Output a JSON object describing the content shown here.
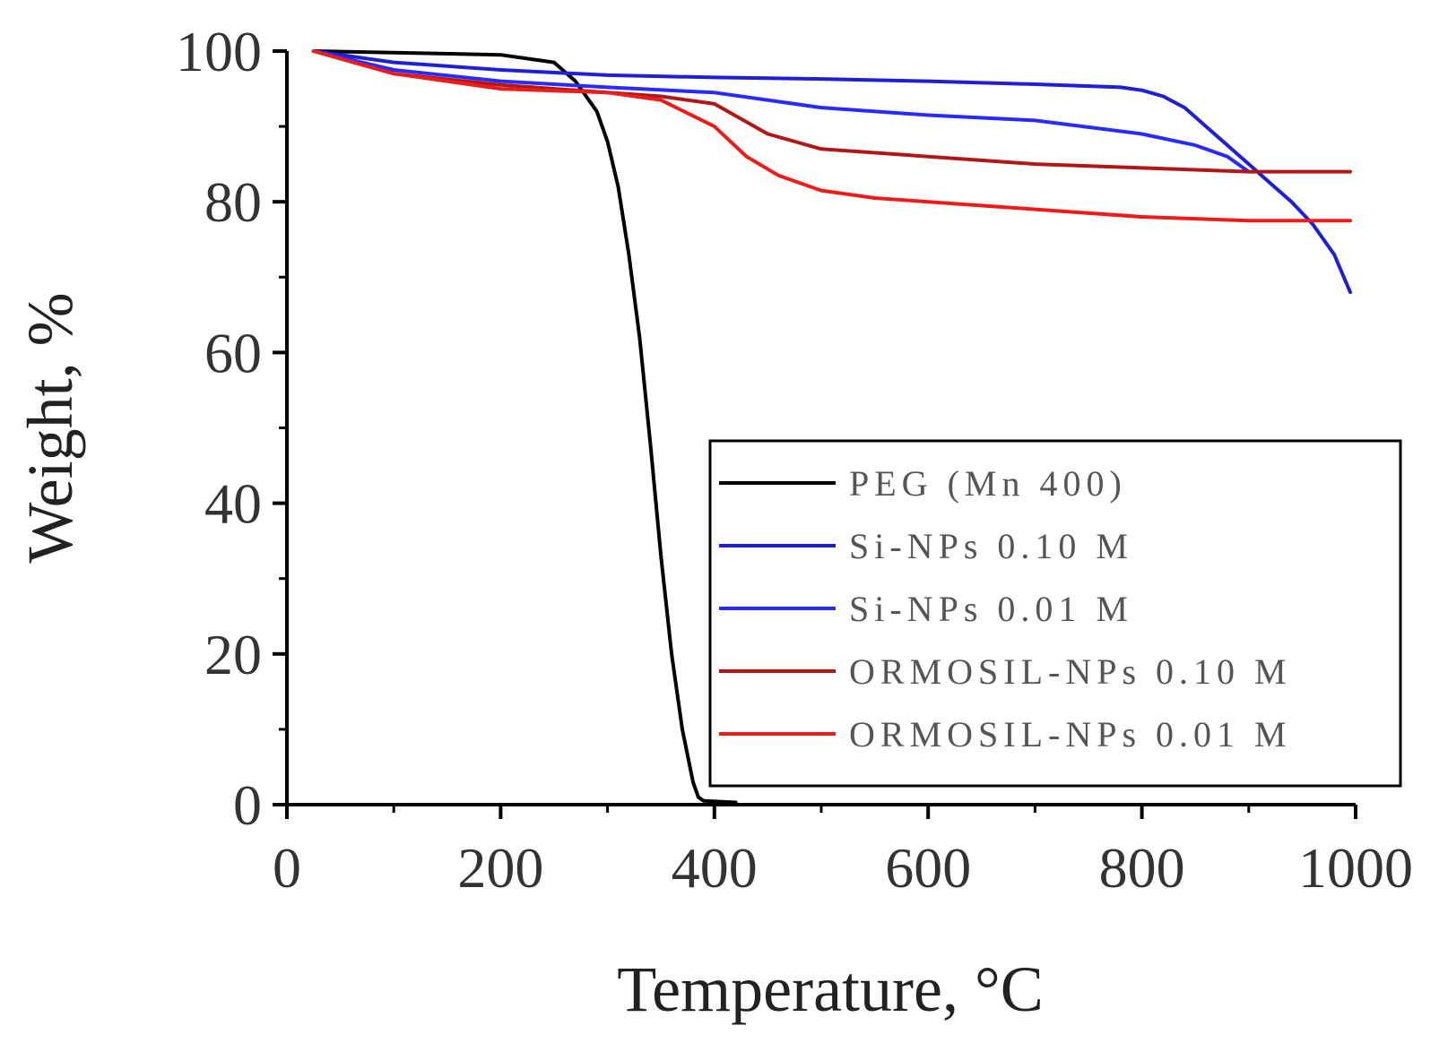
{
  "chart_data": {
    "type": "line",
    "xlabel": "Temperature, °C",
    "ylabel": "Weight, %",
    "xlim": [
      0,
      1000
    ],
    "ylim": [
      0,
      100
    ],
    "xticks": [
      0,
      200,
      400,
      600,
      800,
      1000
    ],
    "yticks": [
      0,
      20,
      40,
      60,
      80,
      100
    ],
    "grid": false,
    "legend_position": "bottom-right",
    "series": [
      {
        "name": "PEG (Mn 400)",
        "color": "#000000",
        "x": [
          25,
          100,
          200,
          250,
          270,
          290,
          300,
          310,
          320,
          330,
          340,
          350,
          360,
          370,
          380,
          385,
          390,
          420
        ],
        "y": [
          100,
          99.8,
          99.5,
          98.5,
          96,
          92,
          88,
          82,
          73,
          62,
          48,
          33,
          20,
          10,
          3,
          1,
          0.5,
          0.3
        ]
      },
      {
        "name": "Si-NPs 0.10 M",
        "color": "#1f1fd6",
        "x": [
          25,
          100,
          200,
          300,
          400,
          500,
          600,
          700,
          780,
          800,
          820,
          840,
          860,
          880,
          900,
          920,
          940,
          960,
          980,
          995
        ],
        "y": [
          100,
          98.5,
          97.5,
          96.8,
          96.5,
          96.3,
          96,
          95.6,
          95.2,
          94.8,
          94,
          92.5,
          90,
          87.5,
          85,
          82.5,
          80,
          77,
          73,
          68
        ]
      },
      {
        "name": "Si-NPs 0.01 M",
        "color": "#2a2aff",
        "x": [
          25,
          100,
          200,
          300,
          400,
          500,
          600,
          700,
          800,
          850,
          880,
          900
        ],
        "y": [
          100,
          97.5,
          96,
          95.2,
          94.5,
          92.5,
          91.5,
          90.8,
          89,
          87.5,
          86,
          84
        ]
      },
      {
        "name": "ORMOSIL-NPs 0.10 M",
        "color": "#b01818",
        "x": [
          25,
          100,
          200,
          300,
          350,
          400,
          450,
          500,
          600,
          700,
          800,
          900,
          995
        ],
        "y": [
          100,
          97,
          95.5,
          94.5,
          94,
          93,
          89,
          87,
          86,
          85,
          84.5,
          84,
          84
        ]
      },
      {
        "name": "ORMOSIL-NPs 0.01 M",
        "color": "#ee1b1b",
        "x": [
          25,
          100,
          200,
          300,
          350,
          400,
          430,
          460,
          500,
          550,
          600,
          700,
          800,
          900,
          995
        ],
        "y": [
          100,
          97,
          95,
          94.5,
          93.5,
          90,
          86,
          83.5,
          81.5,
          80.5,
          80,
          79,
          78,
          77.5,
          77.5
        ]
      }
    ]
  }
}
